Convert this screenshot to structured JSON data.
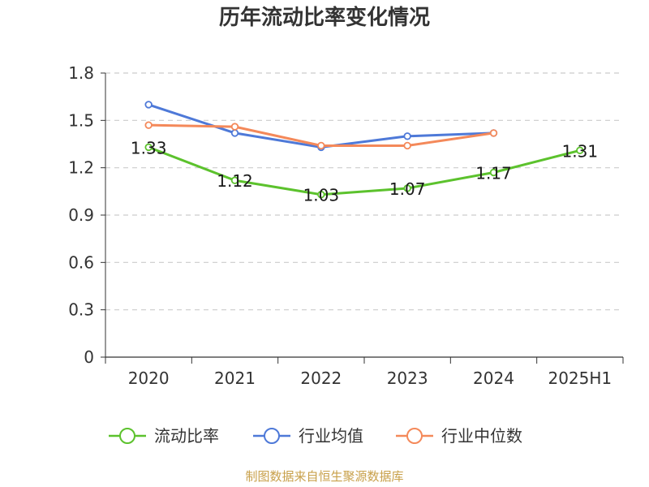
{
  "title": "历年流动比率变化情况",
  "footer": "制图数据来自恒生聚源数据库",
  "chart_data": {
    "type": "line",
    "title": "历年流动比率变化情况",
    "xlabel": "",
    "ylabel": "",
    "categories": [
      "2020",
      "2021",
      "2022",
      "2023",
      "2024",
      "2025H1"
    ],
    "ylim": [
      0,
      1.8
    ],
    "yticks": [
      "0",
      "0.3",
      "0.6",
      "0.9",
      "1.2",
      "1.5",
      "1.8"
    ],
    "grid": true,
    "legend_position": "bottom",
    "series": [
      {
        "name": "流动比率",
        "color": "#5cc22d",
        "values": [
          1.33,
          1.12,
          1.03,
          1.07,
          1.17,
          1.31
        ],
        "labels": [
          "1.33",
          "1.12",
          "1.03",
          "1.07",
          "1.17",
          "1.31"
        ]
      },
      {
        "name": "行业均值",
        "color": "#4e79d8",
        "values": [
          1.6,
          1.42,
          1.33,
          1.4,
          1.42,
          null
        ]
      },
      {
        "name": "行业中位数",
        "color": "#f4895a",
        "values": [
          1.47,
          1.46,
          1.34,
          1.34,
          1.42,
          null
        ]
      }
    ]
  }
}
